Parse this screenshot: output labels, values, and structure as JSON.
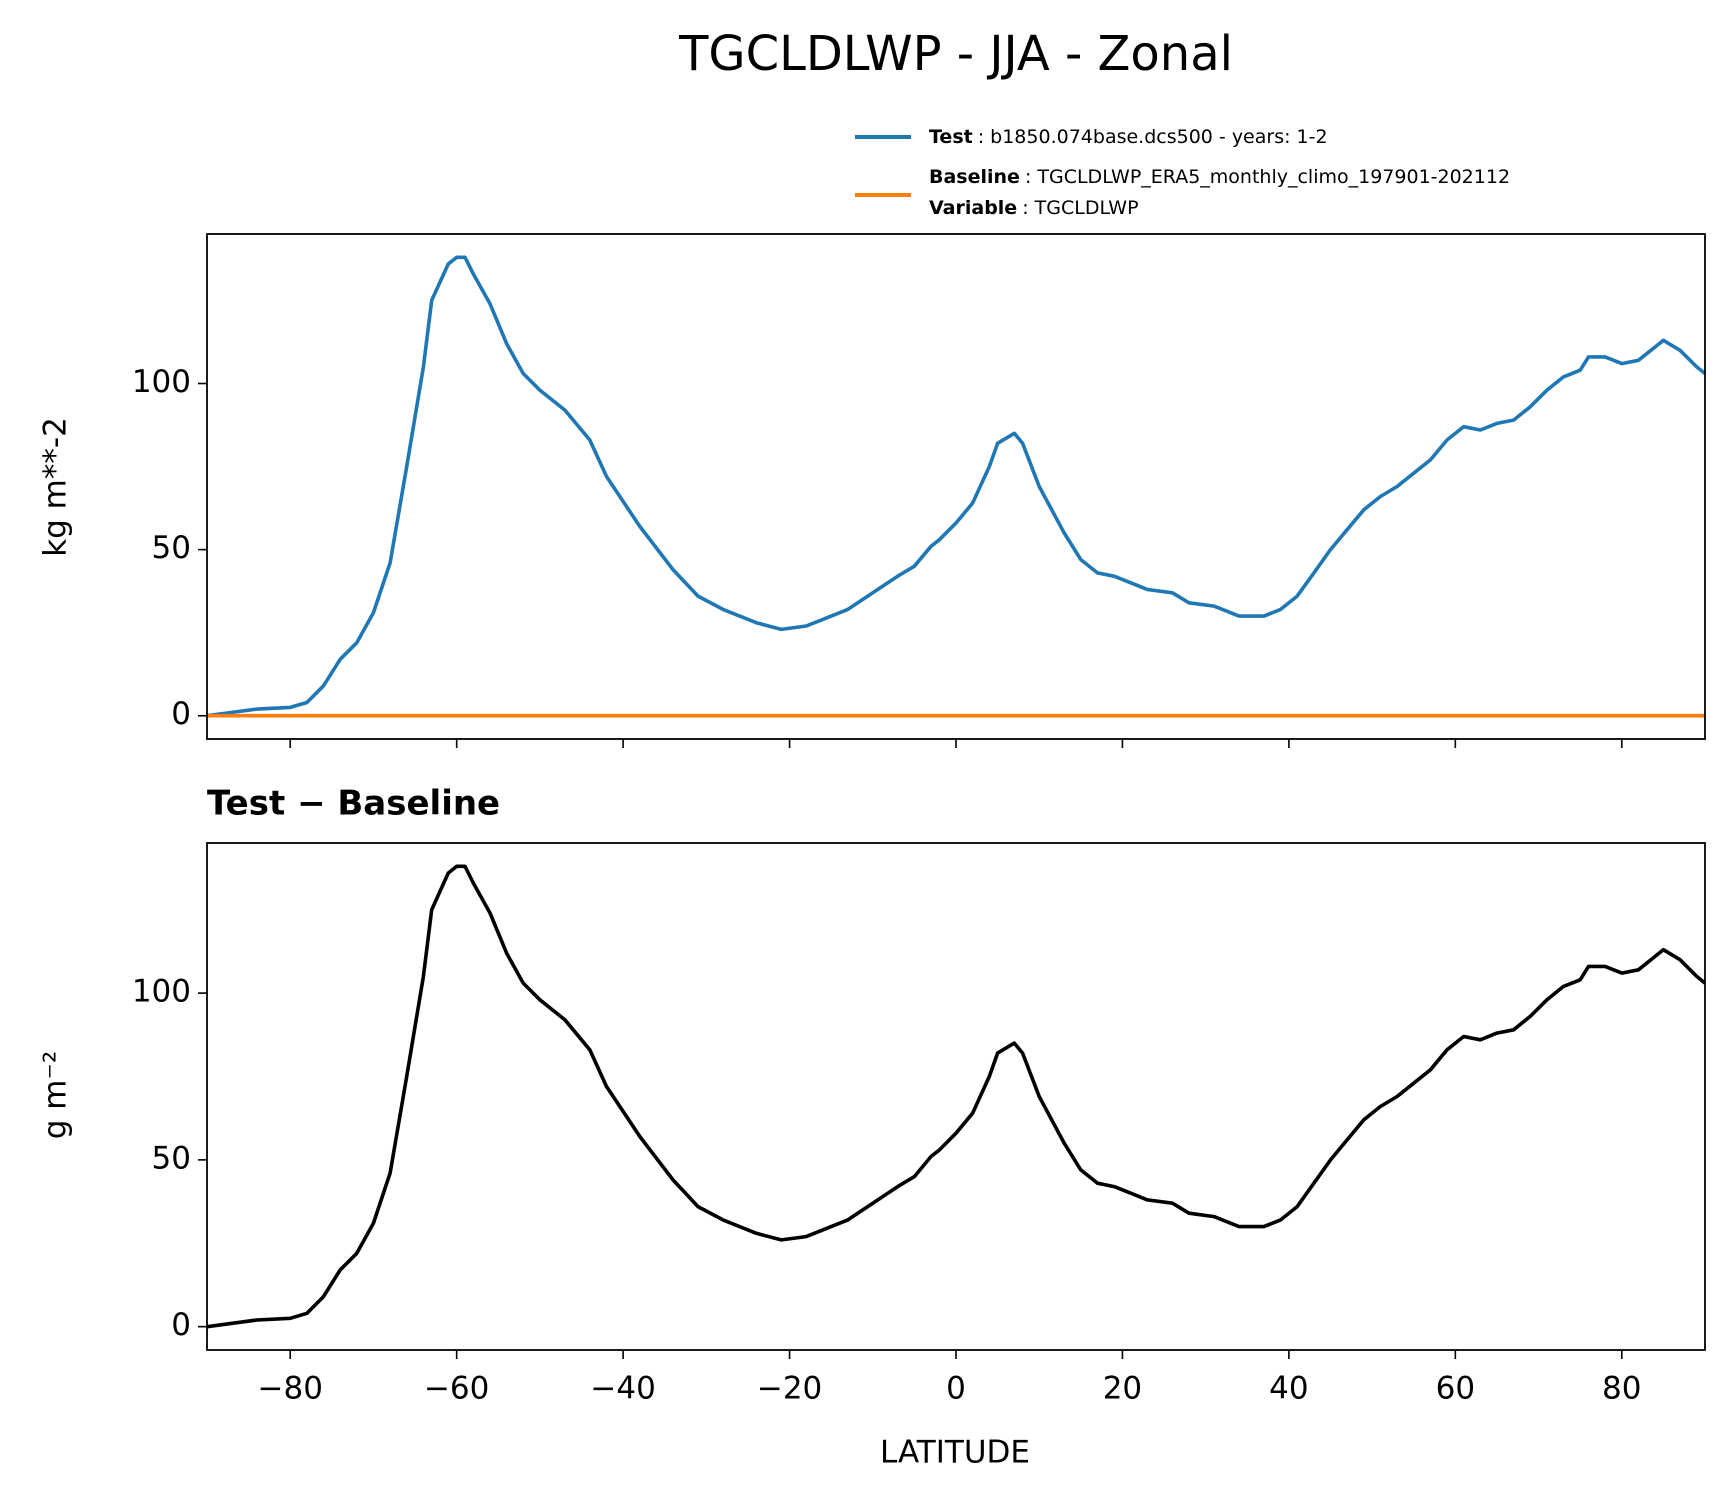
{
  "chart_data": [
    {
      "type": "line",
      "title": "TGCLDLWP - JJA - Zonal",
      "ylabel": "kg m**-2",
      "x": [
        -90,
        -87,
        -84,
        -80,
        -78,
        -76,
        -74,
        -72,
        -70,
        -68,
        -66,
        -64,
        -63,
        -61,
        -60,
        -59,
        -58,
        -56,
        -54,
        -52,
        -50,
        -47,
        -44,
        -42,
        -38,
        -34,
        -31,
        -28,
        -24,
        -21,
        -18,
        -16,
        -13,
        -10,
        -7,
        -5,
        -3,
        -2,
        0,
        2,
        4,
        5,
        7,
        8,
        10,
        13,
        15,
        17,
        19,
        21,
        23,
        26,
        28,
        31,
        34,
        37,
        39,
        41,
        43,
        45,
        47,
        49,
        51,
        53,
        55,
        57,
        59,
        61,
        63,
        65,
        67,
        69,
        71,
        73,
        75,
        76,
        78,
        80,
        82,
        84,
        85,
        87,
        89,
        90
      ],
      "series": [
        {
          "name": "Test",
          "description": ": b1850.074base.dcs500 - years: 1-2",
          "color": "#1f77b4",
          "values": [
            0,
            1,
            2,
            2.5,
            4,
            9,
            17,
            22,
            31,
            46,
            75,
            105,
            125,
            136,
            138,
            138,
            133,
            124,
            112,
            103,
            98,
            92,
            83,
            72,
            57,
            44,
            36,
            32,
            28,
            26,
            27,
            29,
            32,
            37,
            42,
            45,
            51,
            53,
            58,
            64,
            75,
            82,
            85,
            82,
            69,
            55,
            47,
            43,
            42,
            40,
            38,
            37,
            34,
            33,
            30,
            30,
            32,
            36,
            43,
            50,
            56,
            62,
            66,
            69,
            73,
            77,
            83,
            87,
            86,
            88,
            89,
            93,
            98,
            102,
            104,
            108,
            108,
            106,
            107,
            111,
            113,
            110,
            105,
            103
          ]
        },
        {
          "name": "Baseline",
          "description": ": TGCLDLWP_ERA5_monthly_climo_197901-202112",
          "color": "#ff7f0e",
          "values": [
            0,
            0,
            0,
            0,
            0,
            0,
            0,
            0,
            0,
            0,
            0,
            0,
            0,
            0,
            0,
            0,
            0,
            0,
            0,
            0,
            0,
            0,
            0,
            0,
            0,
            0,
            0,
            0,
            0,
            0,
            0,
            0,
            0,
            0,
            0,
            0,
            0,
            0,
            0,
            0,
            0,
            0,
            0,
            0,
            0,
            0,
            0,
            0,
            0,
            0,
            0,
            0,
            0,
            0,
            0,
            0,
            0,
            0,
            0,
            0,
            0,
            0,
            0,
            0,
            0,
            0,
            0,
            0,
            0,
            0,
            0,
            0,
            0,
            0,
            0,
            0,
            0,
            0,
            0,
            0,
            0,
            0,
            0,
            0
          ]
        }
      ],
      "variable": {
        "name": "Variable",
        "description": ": TGCLDLWP"
      },
      "xlim": [
        -90,
        90
      ],
      "xticks": [
        -80,
        -60,
        -40,
        -20,
        0,
        20,
        40,
        60,
        80
      ],
      "ylim": [
        -7,
        145
      ],
      "yticks": [
        0,
        50,
        100
      ]
    },
    {
      "type": "line",
      "title": "Test − Baseline",
      "ylabel": "g m⁻²",
      "xlabel": "LATITUDE",
      "x": [
        -90,
        -87,
        -84,
        -80,
        -78,
        -76,
        -74,
        -72,
        -70,
        -68,
        -66,
        -64,
        -63,
        -61,
        -60,
        -59,
        -58,
        -56,
        -54,
        -52,
        -50,
        -47,
        -44,
        -42,
        -38,
        -34,
        -31,
        -28,
        -24,
        -21,
        -18,
        -16,
        -13,
        -10,
        -7,
        -5,
        -3,
        -2,
        0,
        2,
        4,
        5,
        7,
        8,
        10,
        13,
        15,
        17,
        19,
        21,
        23,
        26,
        28,
        31,
        34,
        37,
        39,
        41,
        43,
        45,
        47,
        49,
        51,
        53,
        55,
        57,
        59,
        61,
        63,
        65,
        67,
        69,
        71,
        73,
        75,
        76,
        78,
        80,
        82,
        84,
        85,
        87,
        89,
        90
      ],
      "color": "#000000",
      "values": [
        0,
        1,
        2,
        2.5,
        4,
        9,
        17,
        22,
        31,
        46,
        75,
        105,
        125,
        136,
        138,
        138,
        133,
        124,
        112,
        103,
        98,
        92,
        83,
        72,
        57,
        44,
        36,
        32,
        28,
        26,
        27,
        29,
        32,
        37,
        42,
        45,
        51,
        53,
        58,
        64,
        75,
        82,
        85,
        82,
        69,
        55,
        47,
        43,
        42,
        40,
        38,
        37,
        34,
        33,
        30,
        30,
        32,
        36,
        43,
        50,
        56,
        62,
        66,
        69,
        73,
        77,
        83,
        87,
        86,
        88,
        89,
        93,
        98,
        102,
        104,
        108,
        108,
        106,
        107,
        111,
        113,
        110,
        105,
        103
      ],
      "xlim": [
        -90,
        90
      ],
      "xticks": [
        {
          "value": -80,
          "label": "−80"
        },
        {
          "value": -60,
          "label": "−60"
        },
        {
          "value": -40,
          "label": "−40"
        },
        {
          "value": -20,
          "label": "−20"
        },
        0,
        20,
        40,
        60,
        80
      ],
      "ylim": [
        -7,
        145
      ],
      "yticks": [
        0,
        50,
        100
      ]
    }
  ]
}
